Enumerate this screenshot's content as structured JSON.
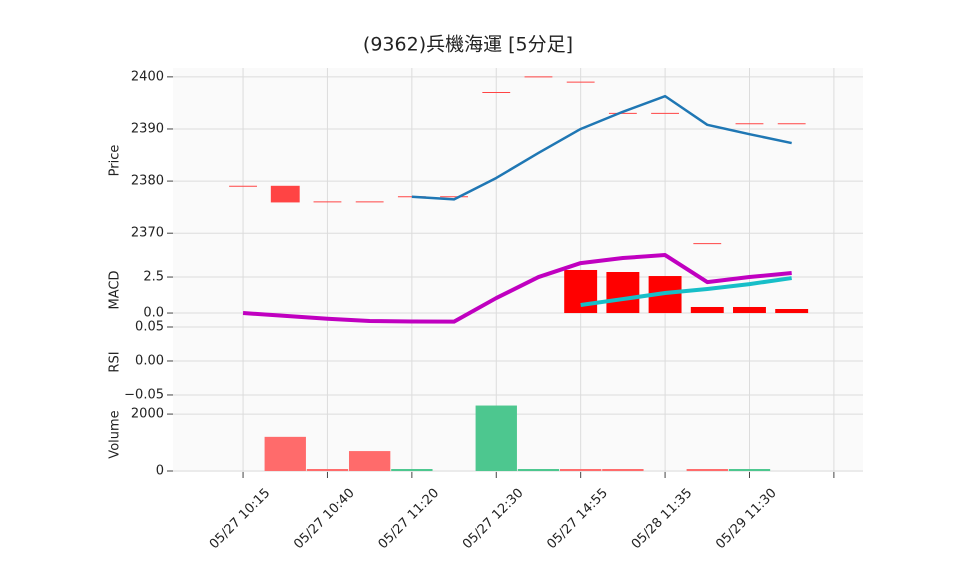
{
  "chart_data": [
    {
      "type": "candlestick",
      "title": "(9362)兵機海運  [5分足]",
      "ylabel": "Price",
      "categories": [
        "05/27 10:15",
        null,
        "05/27 10:40",
        null,
        "05/27 11:20",
        null,
        "05/27 12:30",
        null,
        "05/27 14:55",
        null,
        "05/28 11:35",
        null,
        "05/29 11:30",
        null,
        null
      ],
      "xlim": [
        -1.66,
        14.69
      ],
      "xticks": [
        0,
        2,
        4,
        6,
        8,
        10,
        12,
        14
      ],
      "ylim": [
        2366.2,
        2401.7
      ],
      "yticks": [
        2370,
        2380,
        2390,
        2400
      ],
      "grid": true,
      "open": [
        2379,
        2379,
        2376,
        2376,
        2377,
        2377,
        2397,
        2400,
        2399,
        2393,
        2393,
        2368,
        2391,
        2391,
        null
      ],
      "high": [
        2379,
        2379,
        2376,
        2376,
        2377,
        2377,
        2397,
        2400,
        2399,
        2393,
        2393,
        2368,
        2391,
        2391,
        null
      ],
      "low": [
        2379,
        2376,
        2376,
        2376,
        2377,
        2377,
        2397,
        2400,
        2399,
        2393,
        2393,
        2368,
        2391,
        2391,
        null
      ],
      "close": [
        2379,
        2376,
        2376,
        2376,
        2377,
        2377,
        2397,
        2400,
        2399,
        2393,
        2393,
        2368,
        2391,
        2391,
        null
      ],
      "color": "#ff4444",
      "series": [
        {
          "color": "#1f77b4",
          "values": [
            null,
            null,
            null,
            null,
            2377,
            2376.5,
            2380.6,
            2385.4,
            2390,
            2393.3,
            2396.3,
            2390.8,
            2389,
            2387.3,
            null
          ]
        }
      ]
    },
    {
      "type": "line",
      "ylabel": "MACD",
      "ylim": [
        -0.97,
        4.17
      ],
      "yticks": [
        {
          "value": 0,
          "label": "0.0"
        },
        2.5
      ],
      "grid": true,
      "bars": {
        "color": "#ff0000",
        "values": [
          null,
          null,
          null,
          null,
          null,
          null,
          null,
          null,
          2.99,
          2.85,
          2.57,
          0.42,
          0.42,
          0.28,
          null
        ]
      },
      "series": [
        {
          "color": "#c000c0",
          "values": [
            0,
            -0.2,
            -0.4,
            -0.55,
            -0.59,
            -0.6,
            1.04,
            2.5,
            3.47,
            3.82,
            4.03,
            2.15,
            2.5,
            2.78,
            null
          ]
        },
        {
          "color": "#17bec8",
          "values": [
            null,
            null,
            null,
            null,
            null,
            null,
            null,
            null,
            0.56,
            0.97,
            1.39,
            1.67,
            2.01,
            2.43,
            null
          ]
        }
      ]
    },
    {
      "type": "line",
      "ylabel": "RSI",
      "ylim": [
        -0.053,
        0.05
      ],
      "yticks": [
        0.05,
        {
          "value": 0,
          "label": "0.00"
        },
        {
          "value": -0.05,
          "label": "−0.05"
        }
      ],
      "grid": true,
      "series": []
    },
    {
      "type": "bar",
      "ylabel": "Volume",
      "ylim": [
        -35,
        2600
      ],
      "yticks": [
        0,
        2000
      ],
      "grid": true,
      "values": [
        null,
        1200,
        70,
        700,
        70,
        null,
        2300,
        70,
        70,
        70,
        null,
        70,
        70,
        null,
        null
      ],
      "colors": [
        null,
        "#ff6b6b",
        "#ff6b6b",
        "#ff6b6b",
        "#4dc78f",
        null,
        "#4dc78f",
        "#4dc78f",
        "#ff6b6b",
        "#ff6b6b",
        null,
        "#ff6b6b",
        "#4dc78f",
        null,
        null
      ]
    }
  ]
}
